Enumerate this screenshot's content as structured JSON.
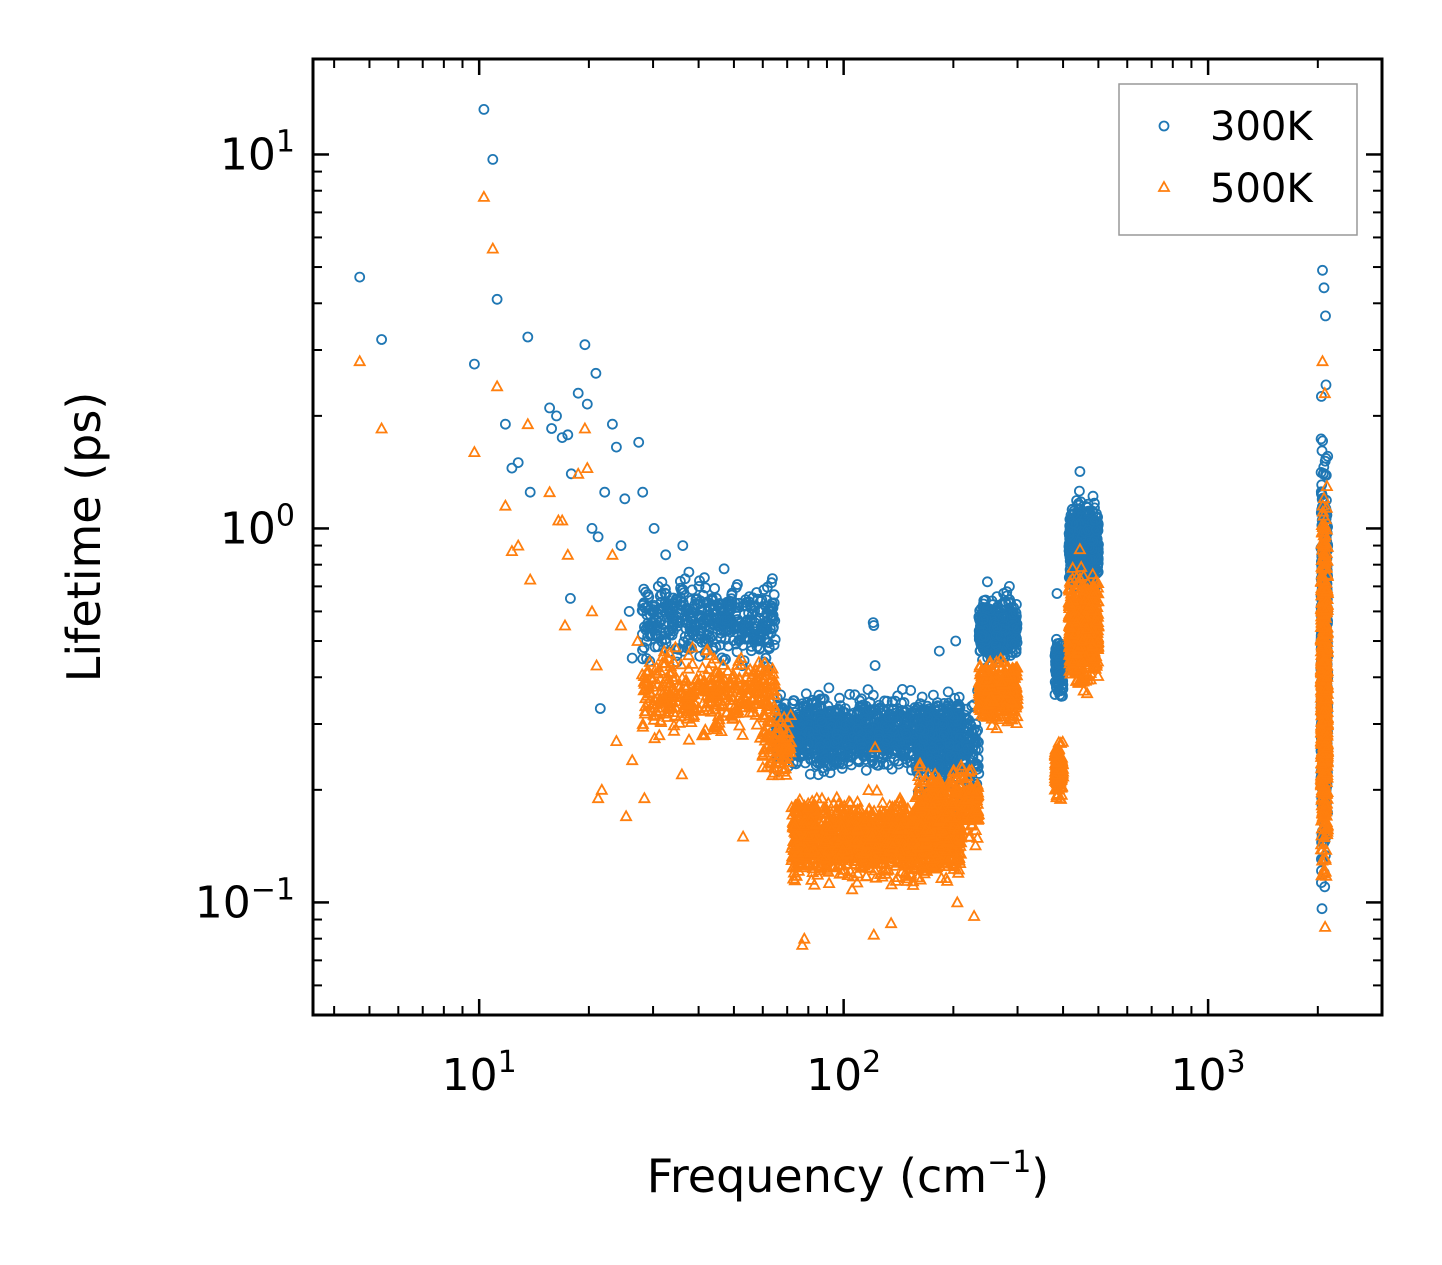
{
  "chart_data": {
    "type": "scatter",
    "xscale": "log",
    "yscale": "log",
    "xlabel": "Frequency (cm",
    "xlabel_sup": "−1",
    "xlabel_end": ")",
    "ylabel": "Lifetime (ps)",
    "xlim": [
      3.5,
      3000
    ],
    "ylim": [
      0.05,
      18
    ],
    "x_ticks": [
      {
        "base": "10",
        "exp": "1",
        "value": 10
      },
      {
        "base": "10",
        "exp": "2",
        "value": 100
      },
      {
        "base": "10",
        "exp": "3",
        "value": 1000
      }
    ],
    "y_ticks": [
      {
        "base": "10",
        "exp": "−1",
        "value": 0.1
      },
      {
        "base": "10",
        "exp": "0",
        "value": 1
      },
      {
        "base": "10",
        "exp": "1",
        "value": 10
      }
    ],
    "legend_position": "top-right",
    "series": [
      {
        "name": "300K",
        "color": "#1f77b4",
        "marker": "circle",
        "points": [
          [
            4.7,
            4.7
          ],
          [
            5.4,
            3.2
          ],
          [
            9.7,
            2.75
          ],
          [
            10.3,
            13.2
          ],
          [
            10.9,
            9.7
          ],
          [
            11.2,
            4.1
          ],
          [
            11.8,
            1.9
          ],
          [
            12.3,
            1.45
          ],
          [
            12.8,
            1.5
          ],
          [
            13.6,
            3.25
          ],
          [
            13.8,
            1.25
          ],
          [
            15.6,
            2.1
          ],
          [
            15.8,
            1.85
          ],
          [
            16.3,
            2.0
          ],
          [
            16.9,
            1.75
          ],
          [
            17.5,
            1.78
          ],
          [
            17.8,
            0.65
          ],
          [
            17.9,
            1.4
          ],
          [
            18.7,
            2.3
          ],
          [
            19.5,
            3.1
          ],
          [
            19.8,
            2.15
          ],
          [
            20.4,
            1.0
          ],
          [
            20.9,
            2.6
          ],
          [
            21.2,
            0.95
          ],
          [
            21.5,
            0.33
          ],
          [
            22.1,
            1.25
          ],
          [
            23.2,
            1.9
          ],
          [
            23.8,
            1.65
          ],
          [
            24.5,
            0.9
          ],
          [
            25.1,
            1.2
          ],
          [
            25.8,
            0.6
          ],
          [
            26.3,
            0.45
          ],
          [
            27.4,
            1.7
          ],
          [
            28.1,
            1.25
          ],
          [
            29.5,
            0.55
          ],
          [
            30.2,
            1.0
          ],
          [
            31.0,
            0.7
          ],
          [
            32.5,
            0.85
          ],
          [
            34.0,
            0.6
          ],
          [
            36.2,
            0.9
          ],
          [
            38.0,
            0.55
          ],
          [
            40.1,
            0.7
          ],
          [
            42.6,
            0.5
          ],
          [
            44.8,
            0.6
          ],
          [
            47.0,
            0.78
          ],
          [
            50.5,
            0.55
          ],
          [
            53.1,
            0.62
          ],
          [
            58.0,
            0.5
          ],
          [
            61.2,
            0.45
          ],
          [
            120.5,
            0.56
          ],
          [
            121.0,
            0.55
          ],
          [
            122.0,
            0.43
          ],
          [
            183.0,
            0.47
          ],
          [
            203.0,
            0.5
          ],
          [
            248.0,
            0.72
          ],
          [
            285.0,
            0.7
          ],
          [
            385.0,
            0.67
          ],
          [
            445.0,
            1.42
          ],
          [
            490.0,
            1.05
          ],
          [
            2060.0,
            4.9
          ],
          [
            2080.0,
            4.4
          ],
          [
            2100.0,
            3.7
          ]
        ],
        "clusters": [
          {
            "x": [
              28,
              65
            ],
            "y": [
              0.38,
              0.85
            ],
            "n": 420
          },
          {
            "x": [
              65,
              210
            ],
            "y": [
              0.2,
              0.4
            ],
            "n": 1300
          },
          {
            "x": [
              160,
              235
            ],
            "y": [
              0.15,
              0.45
            ],
            "n": 300
          },
          {
            "x": [
              235,
              300
            ],
            "y": [
              0.4,
              0.72
            ],
            "n": 420
          },
          {
            "x": [
              380,
              400
            ],
            "y": [
              0.32,
              0.55
            ],
            "n": 120
          },
          {
            "x": [
              415,
              500
            ],
            "y": [
              0.6,
              1.35
            ],
            "n": 650
          },
          {
            "x": [
              2040,
              2130
            ],
            "y": [
              0.06,
              3.3
            ],
            "n": 650
          }
        ]
      },
      {
        "name": "500K",
        "color": "#ff7f0e",
        "marker": "triangle",
        "points": [
          [
            4.7,
            2.8
          ],
          [
            5.4,
            1.85
          ],
          [
            9.7,
            1.6
          ],
          [
            10.3,
            7.7
          ],
          [
            10.9,
            5.6
          ],
          [
            11.2,
            2.4
          ],
          [
            11.8,
            1.15
          ],
          [
            12.3,
            0.87
          ],
          [
            12.8,
            0.9
          ],
          [
            13.6,
            1.9
          ],
          [
            13.8,
            0.73
          ],
          [
            15.6,
            1.25
          ],
          [
            16.5,
            1.05
          ],
          [
            16.9,
            1.05
          ],
          [
            17.2,
            0.55
          ],
          [
            17.5,
            0.85
          ],
          [
            18.7,
            1.4
          ],
          [
            19.5,
            1.85
          ],
          [
            19.8,
            1.45
          ],
          [
            20.4,
            0.6
          ],
          [
            21.0,
            0.43
          ],
          [
            21.2,
            0.19
          ],
          [
            21.7,
            0.2
          ],
          [
            23.2,
            0.85
          ],
          [
            23.8,
            0.27
          ],
          [
            24.5,
            0.55
          ],
          [
            25.3,
            0.17
          ],
          [
            26.3,
            0.24
          ],
          [
            27.2,
            0.5
          ],
          [
            28.4,
            0.19
          ],
          [
            29.5,
            0.4
          ],
          [
            31.2,
            0.28
          ],
          [
            33.0,
            0.45
          ],
          [
            36.0,
            0.22
          ],
          [
            38.0,
            0.36
          ],
          [
            41.0,
            0.28
          ],
          [
            45.0,
            0.3
          ],
          [
            53.0,
            0.15
          ],
          [
            77.0,
            0.077
          ],
          [
            78.0,
            0.08
          ],
          [
            121.0,
            0.082
          ],
          [
            122.0,
            0.26
          ],
          [
            135.0,
            0.088
          ],
          [
            205.0,
            0.1
          ],
          [
            228.0,
            0.092
          ],
          [
            445.0,
            0.88
          ],
          [
            2060.0,
            2.8
          ],
          [
            2090.0,
            2.3
          ]
        ],
        "clusters": [
          {
            "x": [
              28,
              65
            ],
            "y": [
              0.24,
              0.55
            ],
            "n": 380
          },
          {
            "x": [
              60,
              72
            ],
            "y": [
              0.18,
              0.4
            ],
            "n": 100
          },
          {
            "x": [
              72,
              210
            ],
            "y": [
              0.1,
              0.22
            ],
            "n": 1400
          },
          {
            "x": [
              160,
              235
            ],
            "y": [
              0.12,
              0.28
            ],
            "n": 300
          },
          {
            "x": [
              235,
              300
            ],
            "y": [
              0.27,
              0.5
            ],
            "n": 420
          },
          {
            "x": [
              380,
              400
            ],
            "y": [
              0.17,
              0.3
            ],
            "n": 120
          },
          {
            "x": [
              415,
              500
            ],
            "y": [
              0.32,
              0.9
            ],
            "n": 650
          },
          {
            "x": [
              2040,
              2130
            ],
            "y": [
              0.065,
              2.2
            ],
            "n": 650
          }
        ]
      }
    ]
  }
}
